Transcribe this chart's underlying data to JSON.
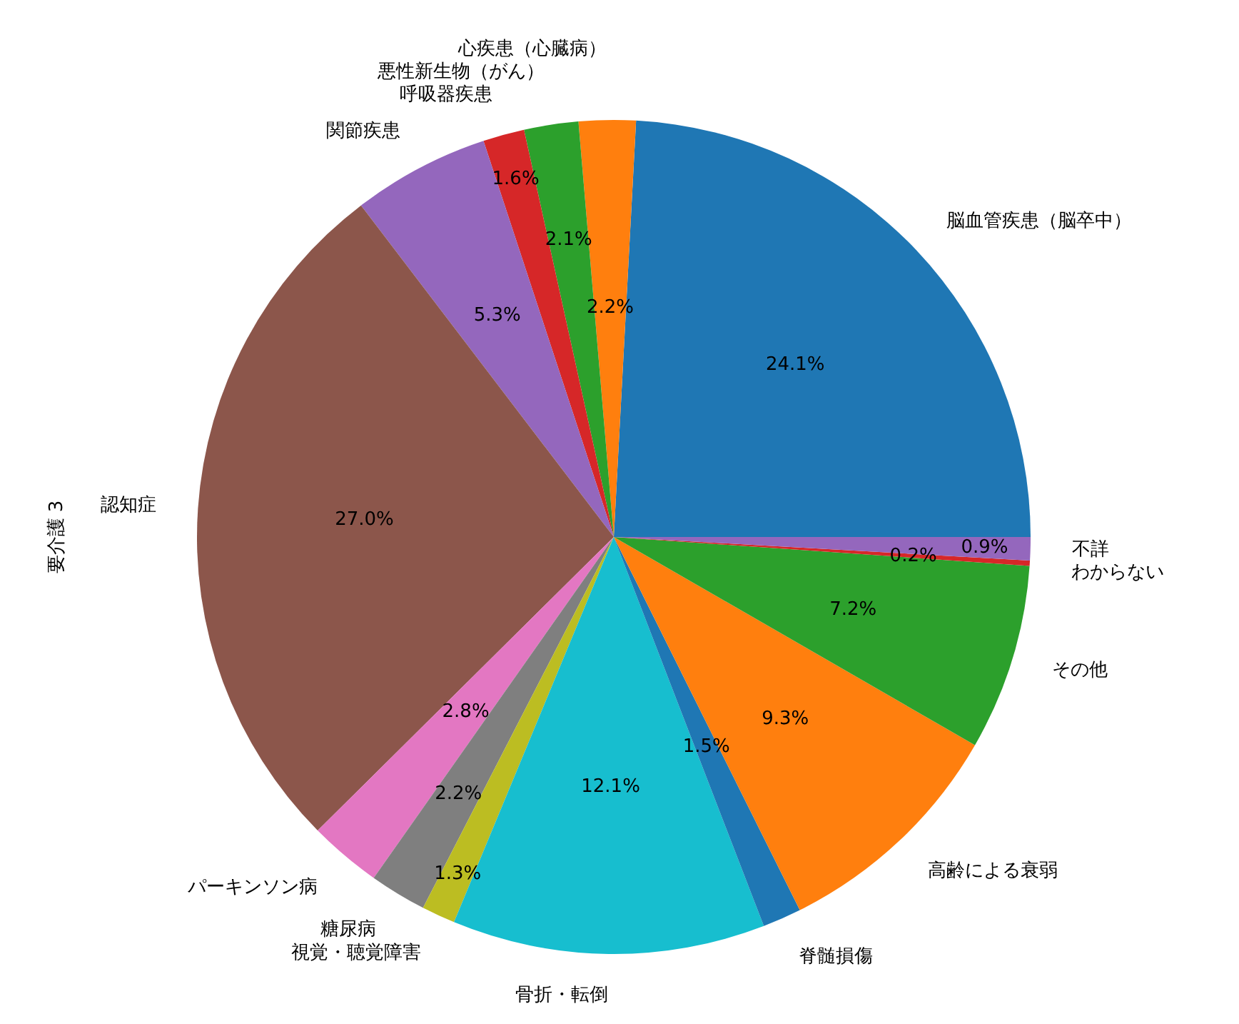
{
  "chart_data": {
    "type": "pie",
    "ylabel": "要介護 3",
    "categories": [
      "脳血管疾患（脳卒中）",
      "心疾患（心臓病）",
      "悪性新生物（がん）",
      "呼吸器疾患",
      "関節疾患",
      "認知症",
      "パーキンソン病",
      "糖尿病",
      "視覚・聴覚障害",
      "骨折・転倒",
      "脊髄損傷",
      "高齢による衰弱",
      "その他",
      "わからない",
      "不詳"
    ],
    "values": [
      24.1,
      2.2,
      2.1,
      1.6,
      5.3,
      27.0,
      2.8,
      2.2,
      1.3,
      12.1,
      1.5,
      9.3,
      7.2,
      0.2,
      0.9
    ],
    "value_labels": [
      "24.1%",
      "2.2%",
      "2.1%",
      "1.6%",
      "5.3%",
      "27.0%",
      "2.8%",
      "2.2%",
      "1.3%",
      "12.1%",
      "1.5%",
      "9.3%",
      "7.2%",
      "0.2%",
      "0.9%"
    ],
    "colors": [
      "#1f77b4",
      "#ff7f0e",
      "#2ca02c",
      "#d62728",
      "#9467bd",
      "#8c564b",
      "#e377c2",
      "#7f7f7f",
      "#bcbd22",
      "#17becf",
      "#1f77b4",
      "#ff7f0e",
      "#2ca02c",
      "#d62728",
      "#9467bd"
    ]
  }
}
